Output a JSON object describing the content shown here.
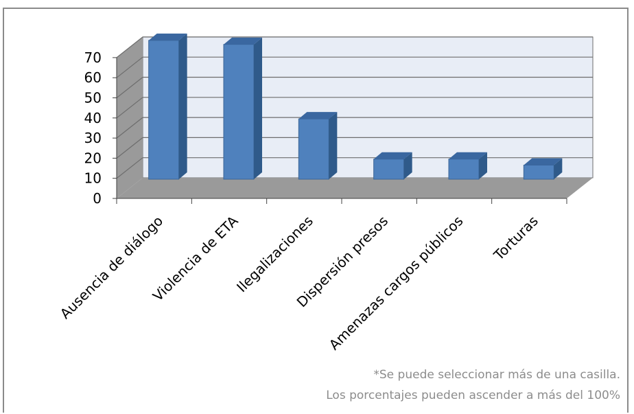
{
  "chart_data": {
    "type": "bar",
    "style": "3d-column",
    "categories": [
      "Ausencia de diálogo",
      "Violencia de ETA",
      "Ilegalizaciones",
      "Dispersión presos",
      "Amenazas cargos públicos",
      "Torturas"
    ],
    "values": [
      69,
      67,
      30,
      10,
      10,
      7
    ],
    "ylim": [
      0,
      70
    ],
    "yticks": [
      0,
      10,
      20,
      30,
      40,
      50,
      60,
      70
    ],
    "grid": true,
    "legend": "none",
    "colors": {
      "bar_front": "#4f81bd",
      "bar_side": "#2f5a8a",
      "bar_top": "#3a67a0",
      "bar_edge": "#3b6596",
      "back_wall": "#e8edf6",
      "side_wall": "#9a9a9a",
      "floor": "#9a9a9a",
      "gridline": "#6d6d6d",
      "note_text": "#8c8c8c"
    },
    "annotations": [
      "*Se puede seleccionar más de una casilla.",
      "Los porcentajes pueden ascender a más del 100%"
    ]
  }
}
